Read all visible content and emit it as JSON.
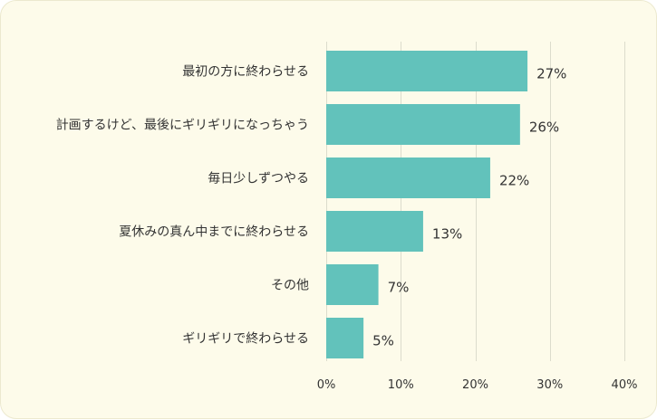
{
  "chart_data": {
    "type": "bar",
    "orientation": "horizontal",
    "categories": [
      "最初の方に終わらせる",
      "計画するけど、最後にギリギリになっちゃう",
      "毎日少しずつやる",
      "夏休みの真ん中までに終わらせる",
      "その他",
      "ギリギリで終わらせる"
    ],
    "values": [
      27,
      26,
      22,
      13,
      7,
      5
    ],
    "value_labels": [
      "27%",
      "26%",
      "22%",
      "13%",
      "7%",
      "5%"
    ],
    "x_ticks": [
      0,
      10,
      20,
      30,
      40
    ],
    "x_tick_labels": [
      "0%",
      "10%",
      "20%",
      "30%",
      "40%"
    ],
    "xlim": [
      0,
      40
    ],
    "grid": true,
    "bar_color": "#62c2bb",
    "background_color": "#fdfbea"
  }
}
